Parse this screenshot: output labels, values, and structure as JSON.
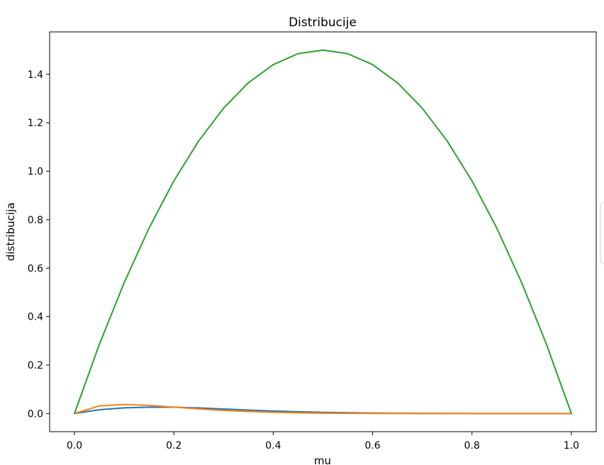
{
  "chart_data": {
    "type": "line",
    "title": "Distribucije",
    "xlabel": "mu",
    "ylabel": "distribucija",
    "xlim": [
      -0.05,
      1.05
    ],
    "ylim": [
      -0.075,
      1.575
    ],
    "x_ticks": [
      {
        "value": 0.0,
        "label": "0.0"
      },
      {
        "value": 0.2,
        "label": "0.2"
      },
      {
        "value": 0.4,
        "label": "0.4"
      },
      {
        "value": 0.6,
        "label": "0.6"
      },
      {
        "value": 0.8,
        "label": "0.8"
      },
      {
        "value": 1.0,
        "label": "1.0"
      }
    ],
    "y_ticks": [
      {
        "value": 0.0,
        "label": "0.0"
      },
      {
        "value": 0.2,
        "label": "0.2"
      },
      {
        "value": 0.4,
        "label": "0.4"
      },
      {
        "value": 0.6,
        "label": "0.6"
      },
      {
        "value": 0.8,
        "label": "0.8"
      },
      {
        "value": 1.0,
        "label": "1.0"
      },
      {
        "value": 1.2,
        "label": "1.2"
      },
      {
        "value": 1.4,
        "label": "1.4"
      }
    ],
    "grid": false,
    "legend": "right (entries not visible)",
    "x": [
      0.0,
      0.05,
      0.1,
      0.15,
      0.2,
      0.25,
      0.3,
      0.35,
      0.4,
      0.45,
      0.5,
      0.55,
      0.6,
      0.65,
      0.7,
      0.75,
      0.8,
      0.85,
      0.9,
      0.95,
      1.0
    ],
    "series": [
      {
        "color": "#1f77b4",
        "values": [
          0.0,
          0.0158,
          0.0234,
          0.0261,
          0.0262,
          0.0229,
          0.0185,
          0.0142,
          0.0103,
          0.0072,
          0.0048,
          0.0031,
          0.0019,
          0.0011,
          0.0006,
          0.0003,
          0.0001,
          5e-05,
          2e-05,
          0.0,
          0.0
        ]
      },
      {
        "color": "#ff7f0e",
        "values": [
          0.0,
          0.0315,
          0.0371,
          0.0333,
          0.0262,
          0.0189,
          0.0128,
          0.0082,
          0.005,
          0.0029,
          0.0016,
          0.0008,
          0.0004,
          0.0002,
          0.0001,
          4e-05,
          1e-05,
          0.0,
          0.0,
          0.0,
          0.0
        ]
      },
      {
        "color": "#2ca02c",
        "values": [
          0.0,
          0.285,
          0.54,
          0.765,
          0.96,
          1.125,
          1.26,
          1.365,
          1.44,
          1.485,
          1.5,
          1.485,
          1.44,
          1.365,
          1.26,
          1.125,
          0.96,
          0.765,
          0.54,
          0.285,
          0.0
        ]
      }
    ]
  }
}
